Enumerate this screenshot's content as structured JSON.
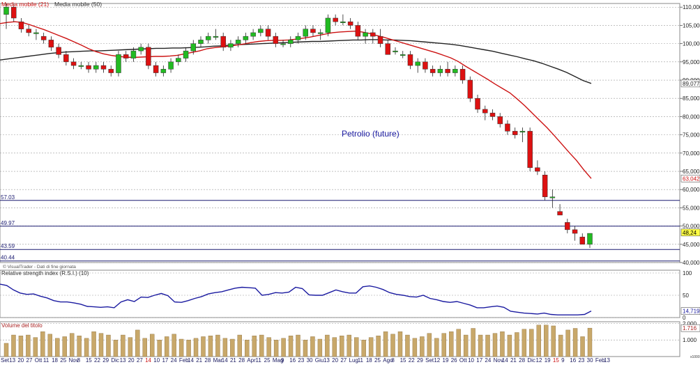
{
  "chart_data": {
    "type": "candlestick",
    "title": "Petrolio (future)",
    "legend": {
      "ma21": "Media mobile (21)",
      "ma50": "Media mobile (50)"
    },
    "colors": {
      "ma21": "#cc1111",
      "ma50": "#222222",
      "up": "#22bb22",
      "down": "#dd1111",
      "volume": "#c8a86a",
      "rsi": "#1a1aa0",
      "level": "#1a1a70"
    },
    "price_axis": {
      "ylim": [
        40,
        111
      ],
      "ticks": [
        "110,000",
        "105,000",
        "100,000",
        "95,000",
        "90,000",
        "85,000",
        "80,000",
        "75,000",
        "70,000",
        "65,000",
        "60,000",
        "55,000",
        "50,000",
        "45,000",
        "40,000"
      ],
      "tick_values": [
        110,
        105,
        100,
        95,
        90,
        85,
        80,
        75,
        70,
        65,
        60,
        55,
        50,
        45,
        40
      ],
      "badges": [
        {
          "label": "89,077",
          "value": 89.077
        },
        {
          "label": "63,042",
          "value": 63.042
        },
        {
          "label": "48,24",
          "value": 48.24
        }
      ]
    },
    "levels": [
      {
        "label": "57.03",
        "value": 57.03
      },
      {
        "label": "49.97",
        "value": 49.97
      },
      {
        "label": "43.59",
        "value": 43.59
      },
      {
        "label": "40.44",
        "value": 40.44
      }
    ],
    "candles": [
      [
        108,
        111,
        104,
        110
      ],
      [
        110,
        111,
        106,
        107
      ],
      [
        106,
        107,
        103,
        104
      ],
      [
        104,
        105,
        102,
        103
      ],
      [
        103,
        104,
        101,
        103
      ],
      [
        102,
        103,
        100,
        101
      ],
      [
        101,
        102,
        98,
        99
      ],
      [
        99,
        100,
        96,
        97
      ],
      [
        97,
        98,
        94,
        95
      ],
      [
        95,
        96,
        93,
        94
      ],
      [
        94,
        95,
        93,
        94
      ],
      [
        94,
        95,
        92,
        93
      ],
      [
        93,
        95,
        92,
        94
      ],
      [
        94,
        95,
        92,
        93
      ],
      [
        93,
        94,
        91,
        92
      ],
      [
        92,
        98,
        91,
        97
      ],
      [
        97,
        98,
        95,
        96
      ],
      [
        96,
        99,
        95,
        98
      ],
      [
        98,
        100,
        97,
        99
      ],
      [
        99,
        100,
        93,
        94
      ],
      [
        94,
        95,
        91,
        92
      ],
      [
        92,
        94,
        91,
        93
      ],
      [
        93,
        96,
        92,
        95
      ],
      [
        95,
        97,
        94,
        96
      ],
      [
        96,
        99,
        95,
        98
      ],
      [
        98,
        101,
        97,
        100
      ],
      [
        100,
        102,
        99,
        101
      ],
      [
        101,
        103,
        100,
        102
      ],
      [
        102,
        104,
        101,
        102
      ],
      [
        102,
        103,
        98,
        99
      ],
      [
        99,
        101,
        98,
        100
      ],
      [
        100,
        102,
        99,
        101
      ],
      [
        101,
        103,
        100,
        102
      ],
      [
        102,
        104,
        101,
        103
      ],
      [
        103,
        105,
        102,
        104
      ],
      [
        104,
        105,
        101,
        102
      ],
      [
        102,
        103,
        99,
        100
      ],
      [
        100,
        101,
        99,
        100
      ],
      [
        100,
        102,
        99,
        101
      ],
      [
        101,
        103,
        100,
        102
      ],
      [
        102,
        105,
        101,
        104
      ],
      [
        104,
        105,
        102,
        103
      ],
      [
        103,
        104,
        101,
        103
      ],
      [
        103,
        108,
        102,
        107
      ],
      [
        107,
        108,
        105,
        106
      ],
      [
        106,
        108,
        105,
        106
      ],
      [
        106,
        107,
        104,
        105
      ],
      [
        105,
        106,
        101,
        102
      ],
      [
        102,
        104,
        100,
        103
      ],
      [
        103,
        104,
        100,
        102
      ],
      [
        102,
        104,
        99,
        100
      ],
      [
        100,
        101,
        97,
        97
      ],
      [
        98,
        99,
        97,
        98
      ],
      [
        97,
        98,
        96,
        97
      ],
      [
        97,
        98,
        93,
        94
      ],
      [
        94,
        96,
        92,
        95
      ],
      [
        95,
        96,
        92,
        93
      ],
      [
        93,
        94,
        91,
        92
      ],
      [
        92,
        94,
        91,
        93
      ],
      [
        93,
        95,
        91,
        92
      ],
      [
        92,
        94,
        91,
        93
      ],
      [
        93,
        94,
        89,
        90
      ],
      [
        90,
        91,
        84,
        85
      ],
      [
        85,
        86,
        81,
        82
      ],
      [
        82,
        83,
        79,
        81
      ],
      [
        81,
        82,
        79,
        80
      ],
      [
        80,
        81,
        77,
        78
      ],
      [
        78,
        79,
        75,
        76
      ],
      [
        76,
        77,
        74,
        75
      ],
      [
        76,
        77,
        73,
        76
      ],
      [
        76,
        77,
        65,
        66
      ],
      [
        66,
        68,
        64,
        65
      ],
      [
        64,
        65,
        57,
        58
      ],
      [
        58,
        60,
        55,
        58
      ],
      [
        54,
        56,
        53,
        53
      ],
      [
        51,
        52,
        48,
        49
      ],
      [
        49,
        50,
        46,
        48
      ],
      [
        47,
        48,
        45,
        45
      ],
      [
        45,
        48,
        44,
        48
      ]
    ],
    "ma21": [
      105.5,
      105.8,
      106,
      105.8,
      105.2,
      104.5,
      103.8,
      103,
      102.2,
      101.4,
      100.5,
      99.6,
      98.6,
      97.8,
      97.2,
      96.8,
      96.5,
      96.3,
      96.2,
      96.3,
      96.4,
      96.5,
      96.5,
      96.6,
      96.8,
      97.2,
      97.6,
      98,
      98.6,
      98.9,
      99.1,
      99.3,
      99.6,
      99.9,
      100.3,
      100.6,
      100.8,
      100.9,
      100.9,
      101,
      101.2,
      101.5,
      101.8,
      102.2,
      102.6,
      103,
      103.2,
      103.3,
      103.4,
      103.2,
      102.8,
      102.2,
      101.7,
      101.1,
      100.5,
      99.9,
      99.3,
      98.7,
      98.1,
      97.5,
      96.8,
      96.1,
      95.1,
      93.8,
      92.6,
      91.4,
      90.2,
      88.9,
      87.7,
      86.5,
      84.8,
      83,
      81,
      79,
      77,
      74.8,
      72.5,
      70.2,
      68,
      65.4,
      63.04
    ],
    "ma50": [
      95.5,
      95.8,
      96.1,
      96.4,
      96.7,
      97,
      97.3,
      97.5,
      97.7,
      97.8,
      97.9,
      98,
      98,
      98.1,
      98.2,
      98.3,
      98.4,
      98.5,
      98.6,
      98.7,
      98.7,
      98.8,
      98.8,
      98.9,
      99,
      99.1,
      99.3,
      99.4,
      99.6,
      99.7,
      99.8,
      99.9,
      100,
      100.1,
      100.2,
      100.3,
      100.4,
      100.5,
      100.6,
      100.6,
      100.7,
      100.8,
      100.9,
      101,
      101,
      101.1,
      101.1,
      101,
      101,
      100.9,
      100.8,
      100.6,
      100.4,
      100.2,
      100,
      99.8,
      99.5,
      99.1,
      98.7,
      98.3,
      97.9,
      97.4,
      96.9,
      96.4,
      95.8,
      95.3,
      94.6,
      93.8,
      93,
      92.1,
      91,
      89.9,
      89.08
    ],
    "rsi": {
      "label": "Relative strength index (R.S.I.) (10)",
      "ylim": [
        0,
        100
      ],
      "ticks": [
        "100",
        "50",
        "0"
      ],
      "tick_values": [
        100,
        50,
        0
      ],
      "badge": {
        "label": "14,719",
        "value": 14.719
      },
      "values": [
        75,
        72,
        62,
        55,
        52,
        53,
        48,
        44,
        38,
        35,
        35,
        33,
        30,
        25,
        24,
        23,
        24,
        22,
        35,
        40,
        36,
        46,
        45,
        50,
        54,
        49,
        35,
        34,
        38,
        43,
        47,
        53,
        56,
        58,
        62,
        66,
        68,
        67,
        66,
        50,
        52,
        56,
        55,
        57,
        68,
        65,
        51,
        50,
        50,
        56,
        62,
        58,
        55,
        55,
        69,
        71,
        68,
        63,
        56,
        52,
        50,
        47,
        46,
        50,
        43,
        40,
        36,
        34,
        36,
        32,
        28,
        22,
        22,
        24,
        26,
        23,
        14,
        12,
        10,
        9,
        8,
        10,
        7,
        6,
        6,
        6,
        6,
        7,
        14.7
      ],
      "values_note": ""
    },
    "volume": {
      "label": "Volume del titolo",
      "ticks": [
        "2.000",
        "1.000"
      ],
      "tick_values": [
        2000,
        1000
      ],
      "badge": {
        "label": "1.716",
        "value": 1716
      },
      "corner_label": "x1000",
      "values": [
        800,
        1300,
        1250,
        1300,
        1150,
        1500,
        1350,
        1100,
        1200,
        1400,
        1250,
        1100,
        1500,
        1400,
        1300,
        1000,
        1300,
        1150,
        1600,
        1100,
        1350,
        1000,
        1200,
        1350,
        1050,
        1000,
        1100,
        1200,
        1250,
        1300,
        1100,
        1050,
        1300,
        1000,
        1250,
        1300,
        1150,
        1000,
        1100,
        1250,
        1300,
        1000,
        1200,
        1050,
        1300,
        1150,
        1250,
        1300,
        1150,
        1000,
        1150,
        1250,
        1500,
        1350,
        1500,
        1300,
        1100,
        1200,
        1400,
        1100,
        1400,
        1500,
        1650,
        1300,
        1700,
        1300,
        1300,
        1400,
        1500,
        1300,
        1450,
        1650,
        1650,
        1900,
        1900,
        1850,
        1300,
        1600,
        1700,
        1200,
        1716
      ]
    },
    "x_labels": [
      "Set",
      "13",
      "20",
      "27",
      "Ott",
      "11",
      "18",
      "25",
      "Nov",
      "8",
      "15",
      "22",
      "29",
      "Dic",
      "13",
      "20",
      "27",
      "14",
      "10",
      "17",
      "24",
      "Feb",
      "14",
      "21",
      "28",
      "Mar",
      "14",
      "21",
      "28",
      "Apr",
      "11",
      "25",
      "Mag",
      "9",
      "16",
      "23",
      "30",
      "Giu",
      "13",
      "20",
      "27",
      "Lug",
      "11",
      "18",
      "25",
      "Ago",
      "8",
      "15",
      "22",
      "29",
      "Set",
      "12",
      "19",
      "26",
      "Ott",
      "10",
      "17",
      "24",
      "Nov",
      "14",
      "21",
      "28",
      "Dic",
      "12",
      "19",
      "15",
      "9",
      "16",
      "23",
      "30",
      "Feb",
      "13"
    ],
    "x_label_red": [
      "14",
      "15"
    ],
    "watermark": "© VisualTrader - Dati di fine giornata"
  }
}
